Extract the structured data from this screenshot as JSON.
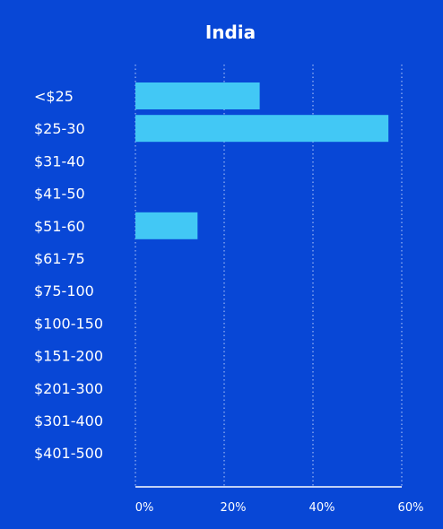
{
  "chart_data": {
    "type": "bar",
    "orientation": "horizontal",
    "title": "India",
    "categories": [
      "<$25",
      "$25-30",
      "$31-40",
      "$41-50",
      "$51-60",
      "$61-75",
      "$75-100",
      "$100-150",
      "$151-200",
      "$201-300",
      "$301-400",
      "$401-500"
    ],
    "values": [
      28,
      57,
      0,
      0,
      14,
      0,
      0,
      0,
      0,
      0,
      0,
      0
    ],
    "xlim": [
      0,
      60
    ],
    "xticks": [
      0,
      20,
      40,
      60
    ],
    "xtick_labels": [
      "0%",
      "20%",
      "40%",
      "60%"
    ],
    "xlabel": "",
    "ylabel": "",
    "grid": "vertical-dotted",
    "colors": {
      "background": "#0847d6",
      "bar": "#42c8f5",
      "text": "#ffffff",
      "grid": "#9fb8f5",
      "axis": "#ffffff"
    }
  }
}
